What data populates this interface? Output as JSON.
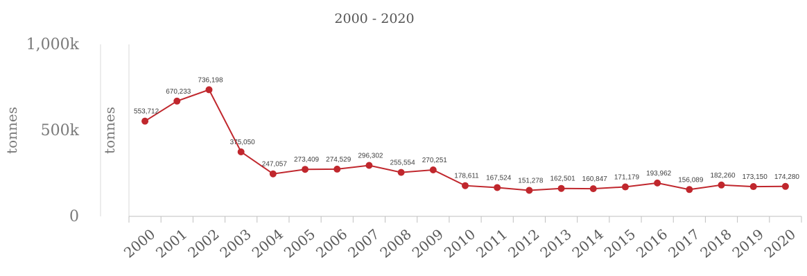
{
  "chart_data": {
    "type": "line",
    "title": "2000 - 2020",
    "ylabel_outer": "tonnes",
    "ylabel_inner": "tonnes",
    "y_ticks": [
      {
        "value": 0,
        "label": "0"
      },
      {
        "value": 500000,
        "label": "500k"
      },
      {
        "value": 1000000,
        "label": "1,000k"
      }
    ],
    "ylim": [
      0,
      1000000
    ],
    "categories": [
      "2000",
      "2001",
      "2002",
      "2003",
      "2004",
      "2005",
      "2006",
      "2007",
      "2008",
      "2009",
      "2010",
      "2011",
      "2012",
      "2013",
      "2014",
      "2015",
      "2016",
      "2017",
      "2018",
      "2019",
      "2020"
    ],
    "values": [
      553712,
      670233,
      736198,
      375050,
      247057,
      273409,
      274529,
      296302,
      255554,
      270251,
      178611,
      167524,
      151278,
      162501,
      160847,
      171179,
      193962,
      156089,
      182260,
      173150,
      174280
    ],
    "data_labels": [
      "553,712",
      "670,233",
      "736,198",
      "375,050",
      "247,057",
      "273,409",
      "274,529",
      "296,302",
      "255,554",
      "270,251",
      "178,611",
      "167,524",
      "151,278",
      "162,501",
      "160,847",
      "171,179",
      "193,962",
      "156,089",
      "182,260",
      "173,150",
      "174,280"
    ],
    "series_color": "#c0272d",
    "grid": false
  }
}
